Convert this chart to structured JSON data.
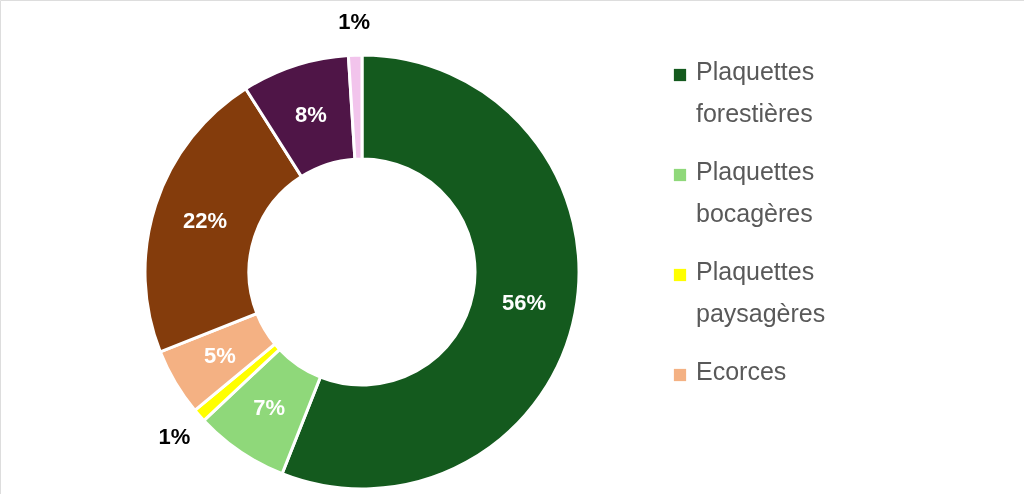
{
  "chart_data": {
    "type": "donut",
    "categories": [
      "Plaquettes forestières",
      "Plaquettes bocagères",
      "Plaquettes paysagères",
      "Ecorces",
      null,
      null,
      null
    ],
    "values": [
      56,
      7,
      1,
      5,
      22,
      8,
      1
    ],
    "colors": [
      "#145a1e",
      "#8fd87a",
      "#ffff00",
      "#f4b183",
      "#843c0c",
      "#4f1547",
      "#f2c4ec"
    ],
    "value_labels": [
      "56%",
      "7%",
      "1%",
      "5%",
      "22%",
      "8%",
      "1%"
    ],
    "legend": "right"
  }
}
